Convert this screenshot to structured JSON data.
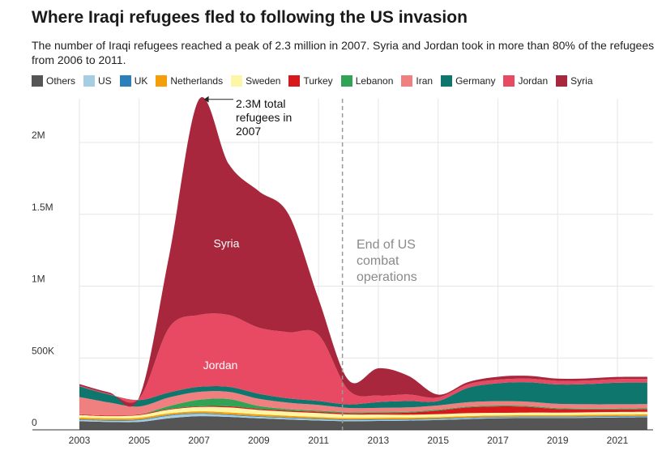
{
  "title": "Where Iraqi refugees fled to following the US invasion",
  "subtitle": "The number of Iraqi refugees reached a peak of 2.3 million in 2007. Syria and Jordan took in more than 80% of the refugees from 2006 to 2011.",
  "chart_data": {
    "type": "area",
    "stacked": true,
    "title": "Where Iraqi refugees fled to following the US invasion",
    "xlabel": "",
    "ylabel": "",
    "x": [
      2003,
      2004,
      2005,
      2006,
      2007,
      2008,
      2009,
      2010,
      2011,
      2012,
      2013,
      2014,
      2015,
      2016,
      2017,
      2018,
      2019,
      2020,
      2021,
      2022
    ],
    "x_ticks": [
      2003,
      2005,
      2007,
      2009,
      2011,
      2013,
      2015,
      2017,
      2019,
      2021
    ],
    "x_tick_labels": [
      "2003",
      "2005",
      "2007",
      "2009",
      "2011",
      "2013",
      "2015",
      "2017",
      "2019",
      "2021"
    ],
    "xlim": [
      2003,
      2022.2
    ],
    "ylim": [
      0,
      2300000
    ],
    "y_ticks": [
      0,
      500000,
      1000000,
      1500000,
      2000000
    ],
    "y_tick_labels": [
      "0",
      "500K",
      "1M",
      "1.5M",
      "2M"
    ],
    "grid": true,
    "legend_position": "top",
    "series": [
      {
        "name": "Others",
        "color": "#555555",
        "values": [
          60000,
          55000,
          55000,
          80000,
          95000,
          90000,
          80000,
          72000,
          65000,
          60000,
          62000,
          64000,
          68000,
          75000,
          80000,
          82000,
          82000,
          84000,
          86000,
          87000
        ]
      },
      {
        "name": "US",
        "color": "#a6cee3",
        "values": [
          8000,
          8000,
          12000,
          18000,
          16000,
          12000,
          10000,
          9000,
          8000,
          7000,
          7000,
          6000,
          6000,
          6000,
          5000,
          5000,
          5000,
          5000,
          5000,
          5000
        ]
      },
      {
        "name": "UK",
        "color": "#2c7fb8",
        "values": [
          5000,
          5000,
          5000,
          5000,
          5000,
          5000,
          5000,
          5000,
          5000,
          5000,
          5000,
          5000,
          5000,
          5000,
          5000,
          5000,
          5000,
          5000,
          5000,
          5000
        ]
      },
      {
        "name": "Netherlands",
        "color": "#f59e0b",
        "values": [
          12000,
          12000,
          12000,
          12000,
          13000,
          14000,
          13000,
          12000,
          11000,
          10000,
          10000,
          10000,
          10000,
          10000,
          10000,
          10000,
          10000,
          10000,
          10000,
          10000
        ]
      },
      {
        "name": "Sweden",
        "color": "#fdf7a5",
        "values": [
          18000,
          15000,
          18000,
          25000,
          30000,
          35000,
          30000,
          28000,
          28000,
          25000,
          22000,
          20000,
          20000,
          20000,
          18000,
          18000,
          18000,
          18000,
          18000,
          18000
        ]
      },
      {
        "name": "Turkey",
        "color": "#d7191c",
        "values": [
          5000,
          5000,
          5000,
          5000,
          5000,
          8000,
          8000,
          8000,
          8000,
          8000,
          10000,
          15000,
          25000,
          40000,
          45000,
          40000,
          25000,
          20000,
          18000,
          18000
        ]
      },
      {
        "name": "Lebanon",
        "color": "#31a354",
        "values": [
          0,
          0,
          0,
          20000,
          45000,
          50000,
          20000,
          10000,
          8000,
          7000,
          7000,
          6000,
          6000,
          6000,
          6000,
          6000,
          6000,
          6000,
          6000,
          6000
        ]
      },
      {
        "name": "Iran",
        "color": "#f08080",
        "values": [
          120000,
          90000,
          55000,
          60000,
          55000,
          50000,
          50000,
          45000,
          40000,
          30000,
          30000,
          30000,
          30000,
          30000,
          30000,
          30000,
          30000,
          30000,
          30000,
          30000
        ]
      },
      {
        "name": "Germany",
        "color": "#0f766e",
        "values": [
          75000,
          55000,
          45000,
          35000,
          35000,
          35000,
          35000,
          30000,
          28000,
          25000,
          40000,
          45000,
          30000,
          100000,
          125000,
          135000,
          135000,
          140000,
          150000,
          150000
        ]
      },
      {
        "name": "Jordan",
        "color": "#e84a63",
        "values": [
          5000,
          5000,
          10000,
          450000,
          500000,
          500000,
          460000,
          460000,
          460000,
          100000,
          45000,
          45000,
          25000,
          25000,
          25000,
          25000,
          25000,
          25000,
          25000,
          25000
        ]
      },
      {
        "name": "Syria",
        "color": "#a8273c",
        "values": [
          10000,
          10000,
          10000,
          500000,
          1500000,
          1050000,
          950000,
          820000,
          250000,
          70000,
          190000,
          130000,
          20000,
          15000,
          20000,
          20000,
          15000,
          15000,
          15000,
          15000
        ]
      }
    ],
    "annotations": [
      {
        "text": "2.3M total refugees in 2007",
        "lines": [
          "2.3M total",
          "refugees in",
          "2007"
        ],
        "x": 2007,
        "y": 2300000
      },
      {
        "text": "End of US combat operations",
        "lines": [
          "End of US",
          "combat",
          "operations"
        ],
        "x": 2011.8
      }
    ],
    "area_labels": [
      {
        "text": "Syria",
        "x": 2008,
        "y": 1300000
      },
      {
        "text": "Jordan",
        "x": 2007.8,
        "y": 450000
      }
    ],
    "reference_line": {
      "x": 2011.8,
      "style": "dashed"
    }
  }
}
